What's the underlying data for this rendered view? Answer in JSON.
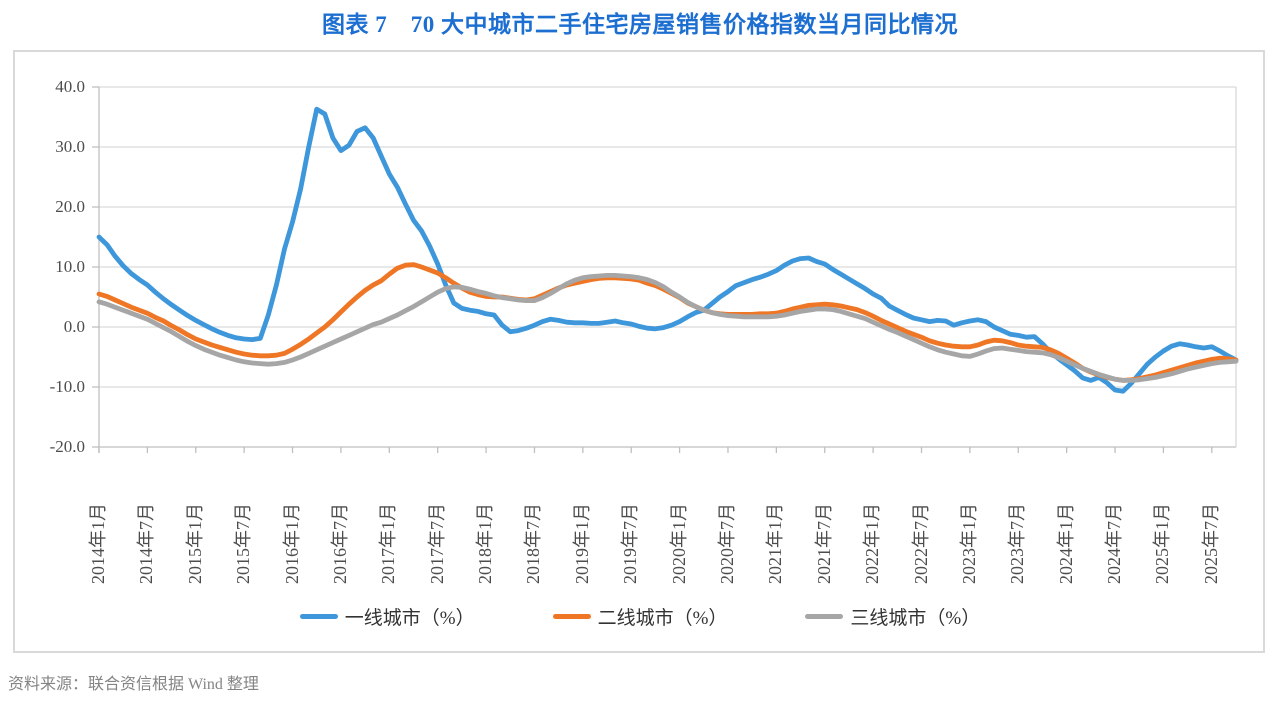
{
  "title": "图表 7　70 大中城市二手住宅房屋销售价格指数当月同比情况",
  "source_note": "资料来源：联合资信根据 Wind 整理",
  "colors": {
    "title_blue": "#1c6fd1",
    "first_tier": "#3d97da",
    "second_tier": "#ee7624",
    "third_tier": "#a6a6a6",
    "gridline": "#d9d9d9",
    "axis_line": "#bfbfbf",
    "tick_text": "#4d4d4d",
    "box_border": "#d9d9d9",
    "source_text": "#848484"
  },
  "chart_data": {
    "type": "line",
    "title": "图表 7　70 大中城市二手住宅房屋销售价格指数当月同比情况",
    "grid": true,
    "legend_position": "bottom",
    "x_start": "2014-01",
    "x_end": "2025-10",
    "x_frequency": "monthly",
    "x_tick_every_n_months": 6,
    "x_tick_labels": [
      "2014年1月",
      "2014年7月",
      "2015年1月",
      "2015年7月",
      "2016年1月",
      "2016年7月",
      "2017年1月",
      "2017年7月",
      "2018年1月",
      "2018年7月",
      "2019年1月",
      "2019年7月",
      "2020年1月",
      "2020年7月",
      "2021年1月",
      "2021年7月",
      "2022年1月",
      "2022年7月",
      "2023年1月",
      "2023年7月",
      "2024年1月",
      "2024年7月",
      "2025年1月",
      "2025年7月"
    ],
    "y_axis": {
      "min": -20,
      "max": 40,
      "step": 10,
      "tick_labels": [
        "40.0",
        "30.0",
        "20.0",
        "10.0",
        "0.0",
        "-10.0",
        "-20.0"
      ]
    },
    "series": [
      {
        "name": "一线城市（%）",
        "color": "#3d97da",
        "values": [
          15.0,
          13.7,
          11.8,
          10.2,
          8.9,
          7.9,
          7.0,
          5.8,
          4.7,
          3.7,
          2.8,
          1.9,
          1.1,
          0.4,
          -0.3,
          -0.9,
          -1.4,
          -1.8,
          -2.0,
          -2.1,
          -1.9,
          2.0,
          7.0,
          13.0,
          17.5,
          23.0,
          30.0,
          36.3,
          35.5,
          31.5,
          29.4,
          30.3,
          32.6,
          33.2,
          31.5,
          28.5,
          25.5,
          23.3,
          20.5,
          17.8,
          16.0,
          13.5,
          10.5,
          7.0,
          4.0,
          3.1,
          2.8,
          2.6,
          2.2,
          2.0,
          0.3,
          -0.8,
          -0.6,
          -0.2,
          0.3,
          0.9,
          1.3,
          1.1,
          0.8,
          0.7,
          0.7,
          0.6,
          0.6,
          0.8,
          1.0,
          0.7,
          0.5,
          0.1,
          -0.2,
          -0.3,
          -0.1,
          0.3,
          0.9,
          1.7,
          2.4,
          2.8,
          3.9,
          5.0,
          5.9,
          6.9,
          7.4,
          7.9,
          8.3,
          8.8,
          9.4,
          10.3,
          11.0,
          11.4,
          11.5,
          10.9,
          10.5,
          9.6,
          8.8,
          8.0,
          7.2,
          6.4,
          5.5,
          4.8,
          3.5,
          2.8,
          2.1,
          1.5,
          1.2,
          0.9,
          1.1,
          1.0,
          0.3,
          0.7,
          1.0,
          1.2,
          0.9,
          0.0,
          -0.6,
          -1.2,
          -1.4,
          -1.7,
          -1.6,
          -2.8,
          -4.2,
          -5.3,
          -6.3,
          -7.3,
          -8.5,
          -8.9,
          -8.4,
          -9.3,
          -10.5,
          -10.7,
          -9.4,
          -7.8,
          -6.2,
          -5.0,
          -4.0,
          -3.2,
          -2.8,
          -3.0,
          -3.3,
          -3.5,
          -3.3,
          -4.0,
          -4.8,
          -5.5
        ]
      },
      {
        "name": "二线城市（%）",
        "color": "#ee7624",
        "values": [
          5.5,
          5.1,
          4.5,
          3.9,
          3.3,
          2.8,
          2.3,
          1.6,
          1.0,
          0.2,
          -0.5,
          -1.3,
          -2.0,
          -2.5,
          -3.0,
          -3.4,
          -3.8,
          -4.2,
          -4.5,
          -4.7,
          -4.8,
          -4.8,
          -4.7,
          -4.4,
          -3.7,
          -2.9,
          -2.0,
          -1.0,
          0.0,
          1.2,
          2.5,
          3.8,
          5.0,
          6.1,
          7.0,
          7.7,
          8.8,
          9.8,
          10.3,
          10.4,
          10.0,
          9.5,
          9.0,
          8.2,
          7.3,
          6.5,
          5.8,
          5.4,
          5.1,
          5.0,
          5.0,
          4.8,
          4.6,
          4.5,
          4.7,
          5.3,
          5.9,
          6.5,
          7.0,
          7.3,
          7.6,
          7.9,
          8.1,
          8.2,
          8.2,
          8.1,
          8.0,
          7.8,
          7.3,
          6.9,
          6.3,
          5.6,
          4.9,
          4.0,
          3.4,
          2.8,
          2.4,
          2.2,
          2.1,
          2.1,
          2.1,
          2.1,
          2.2,
          2.2,
          2.3,
          2.6,
          3.0,
          3.3,
          3.6,
          3.7,
          3.8,
          3.7,
          3.5,
          3.2,
          2.9,
          2.4,
          1.8,
          1.1,
          0.5,
          -0.1,
          -0.7,
          -1.2,
          -1.7,
          -2.3,
          -2.7,
          -3.0,
          -3.2,
          -3.3,
          -3.3,
          -3.0,
          -2.5,
          -2.2,
          -2.3,
          -2.6,
          -3.0,
          -3.2,
          -3.3,
          -3.4,
          -3.8,
          -4.4,
          -5.2,
          -6.0,
          -6.9,
          -7.5,
          -8.0,
          -8.4,
          -8.7,
          -8.9,
          -8.8,
          -8.6,
          -8.3,
          -8.0,
          -7.6,
          -7.2,
          -6.8,
          -6.4,
          -6.0,
          -5.7,
          -5.4,
          -5.2,
          -5.3,
          -5.5
        ]
      },
      {
        "name": "三线城市（%）",
        "color": "#a6a6a6",
        "values": [
          4.2,
          3.8,
          3.3,
          2.8,
          2.3,
          1.8,
          1.3,
          0.6,
          -0.1,
          -0.8,
          -1.6,
          -2.4,
          -3.1,
          -3.7,
          -4.2,
          -4.7,
          -5.1,
          -5.5,
          -5.8,
          -6.0,
          -6.1,
          -6.2,
          -6.1,
          -5.9,
          -5.5,
          -5.0,
          -4.4,
          -3.8,
          -3.2,
          -2.6,
          -2.0,
          -1.4,
          -0.8,
          -0.2,
          0.4,
          0.8,
          1.4,
          2.0,
          2.7,
          3.4,
          4.2,
          5.0,
          5.8,
          6.4,
          6.7,
          6.6,
          6.3,
          5.9,
          5.6,
          5.2,
          4.9,
          4.7,
          4.5,
          4.4,
          4.4,
          4.9,
          5.6,
          6.4,
          7.2,
          7.8,
          8.2,
          8.4,
          8.5,
          8.6,
          8.6,
          8.5,
          8.4,
          8.2,
          7.9,
          7.4,
          6.7,
          5.8,
          5.0,
          4.1,
          3.4,
          2.8,
          2.4,
          2.1,
          1.9,
          1.8,
          1.7,
          1.7,
          1.7,
          1.7,
          1.8,
          2.0,
          2.3,
          2.6,
          2.8,
          3.0,
          3.0,
          2.9,
          2.6,
          2.2,
          1.8,
          1.4,
          0.8,
          0.2,
          -0.4,
          -0.9,
          -1.5,
          -2.1,
          -2.7,
          -3.3,
          -3.8,
          -4.2,
          -4.5,
          -4.8,
          -4.9,
          -4.5,
          -4.0,
          -3.6,
          -3.5,
          -3.7,
          -3.9,
          -4.1,
          -4.2,
          -4.3,
          -4.6,
          -5.1,
          -5.7,
          -6.3,
          -6.9,
          -7.4,
          -7.9,
          -8.3,
          -8.7,
          -8.9,
          -8.9,
          -8.8,
          -8.6,
          -8.4,
          -8.1,
          -7.8,
          -7.4,
          -7.0,
          -6.7,
          -6.4,
          -6.1,
          -5.9,
          -5.8,
          -5.7
        ]
      }
    ]
  }
}
